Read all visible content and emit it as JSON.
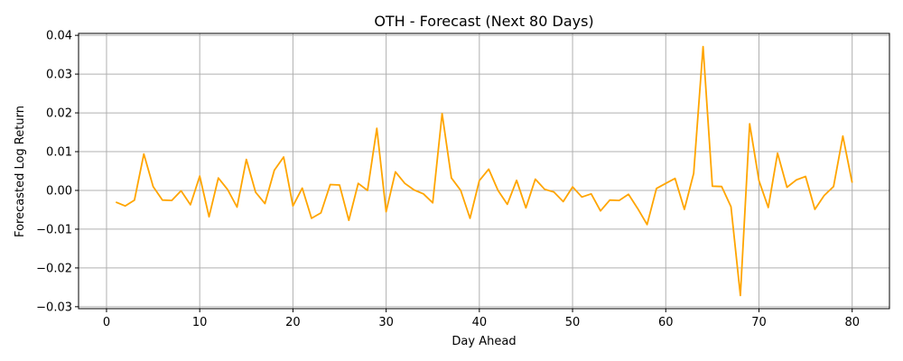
{
  "chart_data": {
    "type": "line",
    "title": "OTH - Forecast (Next 80 Days)",
    "xlabel": "Day Ahead",
    "ylabel": "Forecasted Log Return",
    "xlim": [
      -3,
      84
    ],
    "ylim": [
      -0.0305,
      0.0405
    ],
    "grid": true,
    "color": "#ffa500",
    "x_ticks": [
      0,
      10,
      20,
      30,
      40,
      50,
      60,
      70,
      80
    ],
    "x_tick_labels": [
      "0",
      "10",
      "20",
      "30",
      "40",
      "50",
      "60",
      "70",
      "80"
    ],
    "y_ticks": [
      -0.03,
      -0.02,
      -0.01,
      0.0,
      0.01,
      0.02,
      0.03,
      0.04
    ],
    "y_tick_labels": [
      "−0.03",
      "−0.02",
      "−0.01",
      "0.00",
      "0.01",
      "0.02",
      "0.03",
      "0.04"
    ],
    "series": [
      {
        "x": [
          1,
          2,
          3,
          4,
          5,
          6,
          7,
          8,
          9,
          10,
          11,
          12,
          13,
          14,
          15,
          16,
          17,
          18,
          19,
          20,
          21,
          22,
          23,
          24,
          25,
          26,
          27,
          28,
          29,
          30,
          31,
          32,
          33,
          34,
          35,
          36,
          37,
          38,
          39,
          40,
          41,
          42,
          43,
          44,
          45,
          46,
          47,
          48,
          49,
          50,
          51,
          52,
          53,
          54,
          55,
          56,
          57,
          58,
          59,
          60,
          61,
          62,
          63,
          64,
          65,
          66,
          67,
          68,
          69,
          70,
          71,
          72,
          73,
          74,
          75,
          76,
          77,
          78,
          79,
          80
        ],
        "y": [
          -0.003,
          -0.004,
          -0.0025,
          0.0094,
          0.001,
          -0.0025,
          -0.0026,
          -0.0001,
          -0.0037,
          0.0037,
          -0.0068,
          0.0032,
          0.0002,
          -0.0043,
          0.008,
          -0.0005,
          -0.0034,
          0.0052,
          0.0086,
          -0.004,
          0.0006,
          -0.0072,
          -0.0058,
          0.0015,
          0.0014,
          -0.0077,
          0.0018,
          0.0,
          0.016,
          -0.0055,
          0.0048,
          0.0018,
          0.0001,
          -0.0009,
          -0.0032,
          0.0198,
          0.0032,
          0.0,
          -0.0072,
          0.0025,
          0.0055,
          0.0,
          -0.0036,
          0.0026,
          -0.0045,
          0.0029,
          0.0003,
          -0.0004,
          -0.0029,
          0.0009,
          -0.0017,
          -0.0009,
          -0.0053,
          -0.0025,
          -0.0026,
          -0.001,
          -0.0047,
          -0.0088,
          0.0005,
          0.0018,
          0.0031,
          -0.0049,
          0.0044,
          0.0371,
          0.0011,
          0.001,
          -0.0042,
          -0.0271,
          0.0172,
          0.0025,
          -0.0044,
          0.0096,
          0.0008,
          0.0027,
          0.0036,
          -0.0049,
          -0.0013,
          0.001,
          0.014,
          0.002
        ]
      }
    ]
  }
}
